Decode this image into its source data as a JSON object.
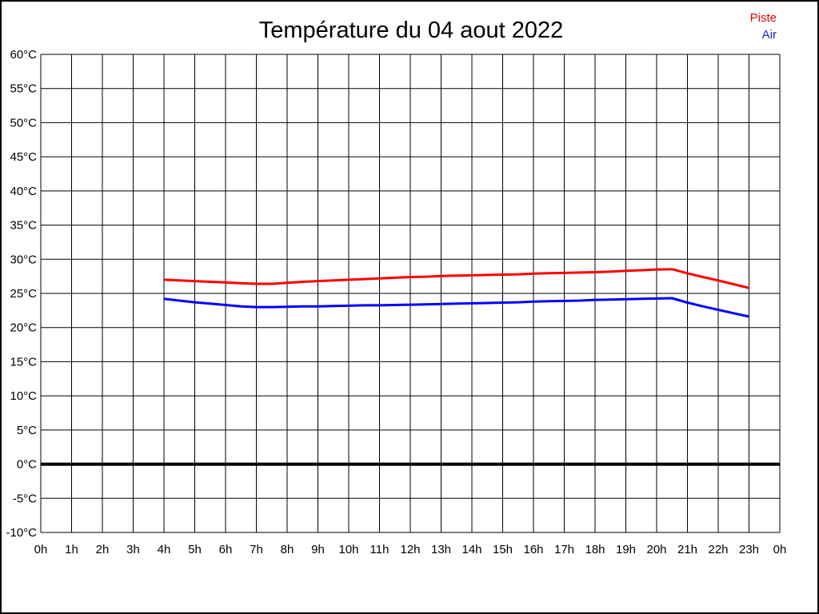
{
  "title": "Température du 04 aout 2022",
  "legend": [
    {
      "label": "Piste",
      "color": "#e00000"
    },
    {
      "label": "Air",
      "color": "#2222cc"
    }
  ],
  "chart_data": {
    "type": "line",
    "title": "Température du 04 aout 2022",
    "xlabel": "",
    "ylabel": "",
    "xlim": [
      0,
      24
    ],
    "ylim": [
      -10,
      60
    ],
    "grid": true,
    "zero_line_value": 0,
    "legend_position": "top-right",
    "x_ticks": [
      {
        "v": 0,
        "label": "0h"
      },
      {
        "v": 1,
        "label": "1h"
      },
      {
        "v": 2,
        "label": "2h"
      },
      {
        "v": 3,
        "label": "3h"
      },
      {
        "v": 4,
        "label": "4h"
      },
      {
        "v": 5,
        "label": "5h"
      },
      {
        "v": 6,
        "label": "6h"
      },
      {
        "v": 7,
        "label": "7h"
      },
      {
        "v": 8,
        "label": "8h"
      },
      {
        "v": 9,
        "label": "9h"
      },
      {
        "v": 10,
        "label": "10h"
      },
      {
        "v": 11,
        "label": "11h"
      },
      {
        "v": 12,
        "label": "12h"
      },
      {
        "v": 13,
        "label": "13h"
      },
      {
        "v": 14,
        "label": "14h"
      },
      {
        "v": 15,
        "label": "15h"
      },
      {
        "v": 16,
        "label": "16h"
      },
      {
        "v": 17,
        "label": "17h"
      },
      {
        "v": 18,
        "label": "18h"
      },
      {
        "v": 19,
        "label": "19h"
      },
      {
        "v": 20,
        "label": "20h"
      },
      {
        "v": 21,
        "label": "21h"
      },
      {
        "v": 22,
        "label": "22h"
      },
      {
        "v": 23,
        "label": "23h"
      },
      {
        "v": 24,
        "label": "0h"
      }
    ],
    "y_ticks": [
      {
        "v": -10,
        "label": "-10°C"
      },
      {
        "v": -5,
        "label": "-5°C"
      },
      {
        "v": 0,
        "label": "0°C"
      },
      {
        "v": 5,
        "label": "5°C"
      },
      {
        "v": 10,
        "label": "10°C"
      },
      {
        "v": 15,
        "label": "15°C"
      },
      {
        "v": 20,
        "label": "20°C"
      },
      {
        "v": 25,
        "label": "25°C"
      },
      {
        "v": 30,
        "label": "30°C"
      },
      {
        "v": 35,
        "label": "35°C"
      },
      {
        "v": 40,
        "label": "40°C"
      },
      {
        "v": 45,
        "label": "45°C"
      },
      {
        "v": 50,
        "label": "50°C"
      },
      {
        "v": 55,
        "label": "55°C"
      },
      {
        "v": 60,
        "label": "60°C"
      }
    ],
    "series": [
      {
        "name": "Piste",
        "color": "#ff0000",
        "points": [
          [
            4.0,
            27.0
          ],
          [
            4.5,
            26.9
          ],
          [
            5.0,
            26.8
          ],
          [
            5.5,
            26.7
          ],
          [
            6.0,
            26.6
          ],
          [
            6.5,
            26.5
          ],
          [
            7.0,
            26.4
          ],
          [
            7.5,
            26.4
          ],
          [
            8.0,
            26.55
          ],
          [
            8.5,
            26.7
          ],
          [
            9.0,
            26.8
          ],
          [
            9.5,
            26.9
          ],
          [
            10.0,
            27.0
          ],
          [
            10.5,
            27.1
          ],
          [
            11.0,
            27.2
          ],
          [
            11.5,
            27.3
          ],
          [
            12.0,
            27.4
          ],
          [
            12.5,
            27.45
          ],
          [
            13.0,
            27.55
          ],
          [
            13.5,
            27.6
          ],
          [
            14.0,
            27.65
          ],
          [
            14.5,
            27.7
          ],
          [
            15.0,
            27.75
          ],
          [
            15.5,
            27.8
          ],
          [
            16.0,
            27.9
          ],
          [
            16.5,
            27.95
          ],
          [
            17.0,
            28.0
          ],
          [
            17.5,
            28.05
          ],
          [
            18.0,
            28.1
          ],
          [
            18.5,
            28.2
          ],
          [
            19.0,
            28.3
          ],
          [
            19.5,
            28.4
          ],
          [
            20.0,
            28.5
          ],
          [
            20.5,
            28.55
          ],
          [
            21.0,
            27.95
          ],
          [
            21.5,
            27.4
          ],
          [
            22.0,
            26.9
          ],
          [
            22.5,
            26.35
          ],
          [
            23.0,
            25.8
          ]
        ]
      },
      {
        "name": "Air",
        "color": "#0000ff",
        "points": [
          [
            4.0,
            24.2
          ],
          [
            4.5,
            23.95
          ],
          [
            5.0,
            23.7
          ],
          [
            5.5,
            23.5
          ],
          [
            6.0,
            23.3
          ],
          [
            6.5,
            23.1
          ],
          [
            7.0,
            23.0
          ],
          [
            7.5,
            23.0
          ],
          [
            8.0,
            23.05
          ],
          [
            8.5,
            23.1
          ],
          [
            9.0,
            23.1
          ],
          [
            9.5,
            23.15
          ],
          [
            10.0,
            23.2
          ],
          [
            10.5,
            23.25
          ],
          [
            11.0,
            23.25
          ],
          [
            11.5,
            23.3
          ],
          [
            12.0,
            23.35
          ],
          [
            12.5,
            23.4
          ],
          [
            13.0,
            23.45
          ],
          [
            13.5,
            23.5
          ],
          [
            14.0,
            23.55
          ],
          [
            14.5,
            23.6
          ],
          [
            15.0,
            23.65
          ],
          [
            15.5,
            23.7
          ],
          [
            16.0,
            23.8
          ],
          [
            16.5,
            23.85
          ],
          [
            17.0,
            23.9
          ],
          [
            17.5,
            23.95
          ],
          [
            18.0,
            24.05
          ],
          [
            18.5,
            24.1
          ],
          [
            19.0,
            24.15
          ],
          [
            19.5,
            24.2
          ],
          [
            20.0,
            24.25
          ],
          [
            20.5,
            24.3
          ],
          [
            21.0,
            23.65
          ],
          [
            21.5,
            23.1
          ],
          [
            22.0,
            22.6
          ],
          [
            22.5,
            22.1
          ],
          [
            23.0,
            21.6
          ]
        ]
      }
    ]
  }
}
